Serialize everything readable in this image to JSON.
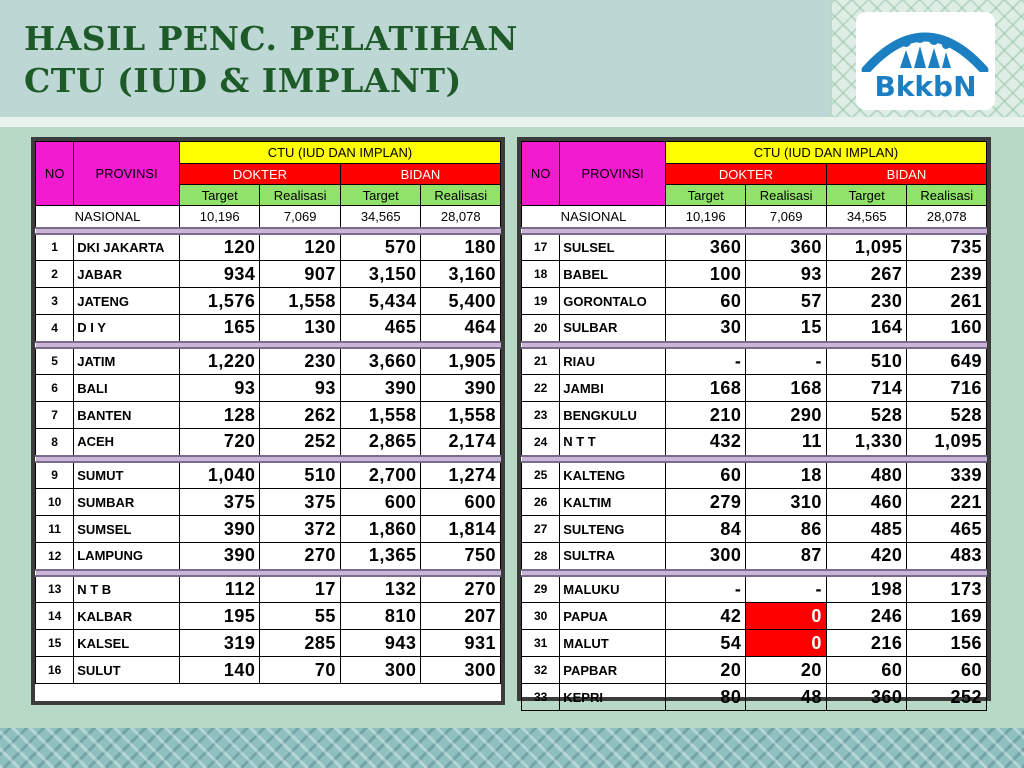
{
  "title": {
    "line1": "HASIL PENC. PELATIHAN",
    "line2": "CTU (IUD & IMPLANT)"
  },
  "logo": {
    "text": "BkkbN",
    "icon": "family-arc-icon"
  },
  "colors": {
    "title": "#1e5a28",
    "header_magenta": "#f21bd0",
    "header_yellow": "#ffff00",
    "header_red": "#ff0000",
    "header_green": "#90e26a",
    "highlight_red": "#ff0000"
  },
  "table_headers": {
    "no": "NO",
    "provinsi": "PROVINSI",
    "group": "CTU (IUD DAN IMPLAN)",
    "dokter": "DOKTER",
    "bidan": "BIDAN",
    "target": "Target",
    "realisasi": "Realisasi"
  },
  "nasional": {
    "label": "NASIONAL",
    "values": [
      "10,196",
      "7,069",
      "34,565",
      "28,078"
    ]
  },
  "left_groups": [
    [
      {
        "no": "1",
        "prov": "DKI JAKARTA",
        "v": [
          "120",
          "120",
          "570",
          "180"
        ]
      },
      {
        "no": "2",
        "prov": "JABAR",
        "v": [
          "934",
          "907",
          "3,150",
          "3,160"
        ]
      },
      {
        "no": "3",
        "prov": "JATENG",
        "v": [
          "1,576",
          "1,558",
          "5,434",
          "5,400"
        ]
      },
      {
        "no": "4",
        "prov": "D I Y",
        "v": [
          "165",
          "130",
          "465",
          "464"
        ]
      }
    ],
    [
      {
        "no": "5",
        "prov": "JATIM",
        "v": [
          "1,220",
          "230",
          "3,660",
          "1,905"
        ]
      },
      {
        "no": "6",
        "prov": "BALI",
        "v": [
          "93",
          "93",
          "390",
          "390"
        ]
      },
      {
        "no": "7",
        "prov": "BANTEN",
        "v": [
          "128",
          "262",
          "1,558",
          "1,558"
        ]
      },
      {
        "no": "8",
        "prov": "ACEH",
        "v": [
          "720",
          "252",
          "2,865",
          "2,174"
        ]
      }
    ],
    [
      {
        "no": "9",
        "prov": "SUMUT",
        "v": [
          "1,040",
          "510",
          "2,700",
          "1,274"
        ]
      },
      {
        "no": "10",
        "prov": "SUMBAR",
        "v": [
          "375",
          "375",
          "600",
          "600"
        ]
      },
      {
        "no": "11",
        "prov": "SUMSEL",
        "v": [
          "390",
          "372",
          "1,860",
          "1,814"
        ]
      },
      {
        "no": "12",
        "prov": "LAMPUNG",
        "v": [
          "390",
          "270",
          "1,365",
          "750"
        ]
      }
    ],
    [
      {
        "no": "13",
        "prov": "N T B",
        "v": [
          "112",
          "17",
          "132",
          "270"
        ]
      },
      {
        "no": "14",
        "prov": "KALBAR",
        "v": [
          "195",
          "55",
          "810",
          "207"
        ]
      },
      {
        "no": "15",
        "prov": "KALSEL",
        "v": [
          "319",
          "285",
          "943",
          "931"
        ]
      },
      {
        "no": "16",
        "prov": "SULUT",
        "v": [
          "140",
          "70",
          "300",
          "300"
        ]
      }
    ]
  ],
  "right_groups": [
    [
      {
        "no": "17",
        "prov": "SULSEL",
        "v": [
          "360",
          "360",
          "1,095",
          "735"
        ]
      },
      {
        "no": "18",
        "prov": "BABEL",
        "v": [
          "100",
          "93",
          "267",
          "239"
        ]
      },
      {
        "no": "19",
        "prov": "GORONTALO",
        "v": [
          "60",
          "57",
          "230",
          "261"
        ]
      },
      {
        "no": "20",
        "prov": "SULBAR",
        "v": [
          "30",
          "15",
          "164",
          "160"
        ]
      }
    ],
    [
      {
        "no": "21",
        "prov": "RIAU",
        "v": [
          "-",
          "-",
          "510",
          "649"
        ]
      },
      {
        "no": "22",
        "prov": "JAMBI",
        "v": [
          "168",
          "168",
          "714",
          "716"
        ]
      },
      {
        "no": "23",
        "prov": "BENGKULU",
        "v": [
          "210",
          "290",
          "528",
          "528"
        ]
      },
      {
        "no": "24",
        "prov": "N T T",
        "v": [
          "432",
          "11",
          "1,330",
          "1,095"
        ]
      }
    ],
    [
      {
        "no": "25",
        "prov": "KALTENG",
        "v": [
          "60",
          "18",
          "480",
          "339"
        ]
      },
      {
        "no": "26",
        "prov": "KALTIM",
        "v": [
          "279",
          "310",
          "460",
          "221"
        ]
      },
      {
        "no": "27",
        "prov": "SULTENG",
        "v": [
          "84",
          "86",
          "485",
          "465"
        ]
      },
      {
        "no": "28",
        "prov": "SULTRA",
        "v": [
          "300",
          "87",
          "420",
          "483"
        ]
      }
    ],
    [
      {
        "no": "29",
        "prov": "MALUKU",
        "v": [
          "-",
          "-",
          "198",
          "173"
        ]
      },
      {
        "no": "30",
        "prov": "PAPUA",
        "v": [
          "42",
          "0",
          "246",
          "169"
        ],
        "highlight": [
          1
        ]
      },
      {
        "no": "31",
        "prov": "MALUT",
        "v": [
          "54",
          "0",
          "216",
          "156"
        ],
        "highlight": [
          1
        ]
      },
      {
        "no": "32",
        "prov": "PAPBAR",
        "v": [
          "20",
          "20",
          "60",
          "60"
        ]
      },
      {
        "no": "33",
        "prov": "KEPRI",
        "v": [
          "80",
          "48",
          "360",
          "252"
        ]
      }
    ]
  ]
}
